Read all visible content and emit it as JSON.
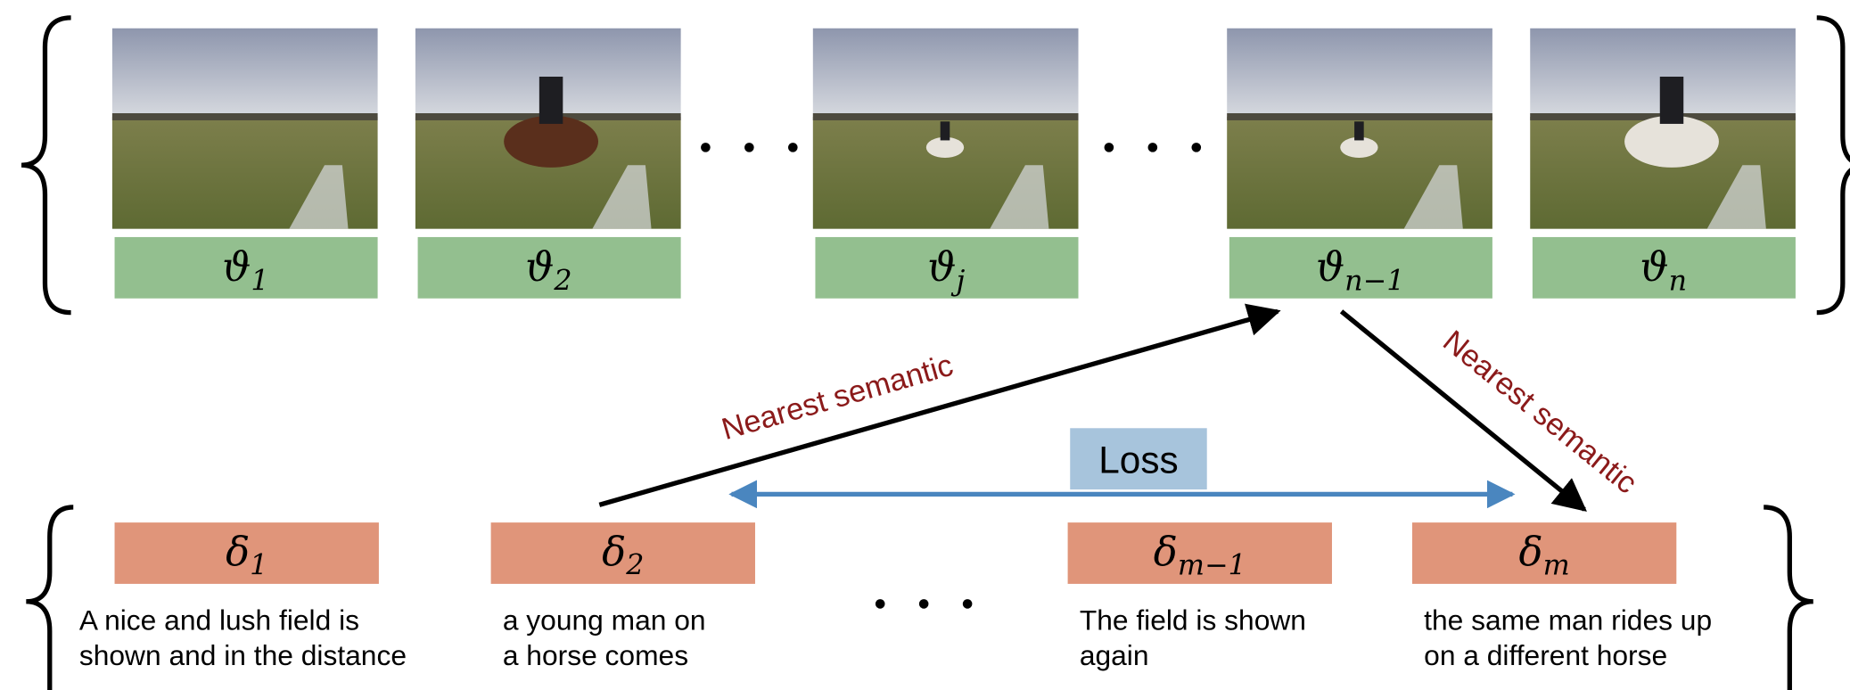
{
  "frames": [
    {
      "label": {
        "symbol": "ϑ",
        "subscript": "1"
      }
    },
    {
      "label": {
        "symbol": "ϑ",
        "subscript": "2"
      }
    },
    {
      "label": {
        "symbol": "ϑ",
        "subscript": "j"
      }
    },
    {
      "label": {
        "symbol": "ϑ",
        "subscript": "n−1"
      }
    },
    {
      "label": {
        "symbol": "ϑ",
        "subscript": "n"
      }
    }
  ],
  "sentences": [
    {
      "label": {
        "symbol": "δ",
        "subscript": "1"
      },
      "caption": [
        "A nice and lush field is",
        "shown and in the distance"
      ]
    },
    {
      "label": {
        "symbol": "δ",
        "subscript": "2"
      },
      "caption": [
        "a young man on",
        "a horse comes"
      ]
    },
    {
      "label": {
        "symbol": "δ",
        "subscript": "m−1"
      },
      "caption": [
        "The field is shown",
        "again"
      ]
    },
    {
      "label": {
        "symbol": "δ",
        "subscript": "m"
      },
      "caption": [
        "the same man rides up",
        "on a different horse"
      ]
    }
  ],
  "arrows": {
    "to_frame": "Nearest semantic",
    "to_sentence": "Nearest semantic",
    "loss": "Loss"
  }
}
